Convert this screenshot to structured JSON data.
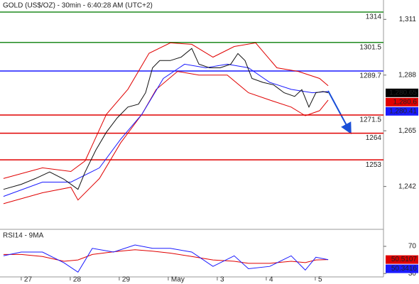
{
  "chart_data": [
    {
      "type": "line",
      "title": "GOLD (US$/OZ) - 30min - 6:40:28 AM (UTC+2)",
      "xlim": [
        -10.4,
        177.4
      ],
      "xticks": [
        {
          "value": 0,
          "label": "27"
        },
        {
          "value": 24,
          "label": "28"
        },
        {
          "value": 48,
          "label": "29"
        },
        {
          "value": 72,
          "label": "May"
        },
        {
          "value": 96,
          "label": "3"
        },
        {
          "value": 120,
          "label": "4"
        },
        {
          "value": 144,
          "label": "5"
        }
      ],
      "ylim": [
        1224.6,
        1319
      ],
      "yticks": [
        {
          "value": 1311,
          "label": "1,311"
        },
        {
          "value": 1288,
          "label": "1,288"
        },
        {
          "value": 1265,
          "label": "1,265"
        },
        {
          "value": 1242,
          "label": "1,242"
        }
      ],
      "series": [
        {
          "color": "#e00000",
          "x": [
            -8.7,
            10.4,
            24.3,
            31.3,
            41.7,
            52.2,
            62.6,
            73,
            83.5,
            93.9,
            104.3,
            114.8,
            125.2,
            135.7,
            146.1,
            150.3
          ],
          "values": [
            1245.3,
            1249.7,
            1248.2,
            1252.6,
            1271.8,
            1282.1,
            1297,
            1301.3,
            1300.7,
            1295.4,
            1299.8,
            1301.3,
            1291,
            1289.5,
            1286.6,
            1283.6
          ]
        },
        {
          "color": "#e00000",
          "x": [
            -8.7,
            10.4,
            24.3,
            27.8,
            38.3,
            48.7,
            59.1,
            66.1,
            76.5,
            87,
            100.9,
            111.3,
            121.7,
            132.2,
            139.1,
            146.1,
            150.3
          ],
          "values": [
            1234.9,
            1239.4,
            1241.7,
            1236.4,
            1245.3,
            1260,
            1271.8,
            1282.1,
            1289.5,
            1288,
            1288,
            1280.7,
            1277.7,
            1274.8,
            1271.2,
            1273.3,
            1277.7
          ]
        },
        {
          "color": "#1a1aff",
          "x": [
            -8.7,
            10.4,
            24.3,
            38.3,
            48.7,
            59.1,
            69.6,
            80,
            90.4,
            100.9,
            111.3,
            121.7,
            132.2,
            142.6,
            150.3
          ],
          "values": [
            1237.9,
            1243.8,
            1243.8,
            1249.7,
            1261.5,
            1271.8,
            1286.6,
            1292.5,
            1291,
            1292.5,
            1291,
            1285,
            1282.1,
            1280.7,
            1281.2
          ]
        },
        {
          "color": "#111111",
          "x": [
            -8.7,
            0,
            7,
            13.9,
            20.9,
            27.8,
            31.3,
            36.5,
            41.7,
            47,
            52.2,
            57.4,
            60.9,
            64.3,
            67.8,
            73,
            78.3,
            83.5,
            87,
            92.2,
            97.4,
            102.6,
            106.1,
            109.6,
            113,
            118.3,
            123.5,
            128.7,
            133.9,
            137.4,
            140.9,
            144.3,
            147.8,
            150.3
          ],
          "values": [
            1240.8,
            1242.9,
            1245.3,
            1248,
            1245,
            1240.8,
            1248,
            1257,
            1264.4,
            1270.3,
            1274.8,
            1276,
            1280.7,
            1291,
            1294,
            1294,
            1295.4,
            1299,
            1292.5,
            1291,
            1291,
            1292.5,
            1296.9,
            1294,
            1286.6,
            1285,
            1284,
            1280.7,
            1279.2,
            1282,
            1274.8,
            1280.7,
            1281.2,
            1280.7
          ]
        }
      ],
      "levels": [
        1314,
        1301.5,
        1289.7,
        1271.5,
        1264,
        1253
      ],
      "level_colors": [
        "#1f8a1f",
        "#1f8a1f",
        "#1a1aff",
        "#e00000",
        "#e00000",
        "#e00000"
      ],
      "price_labels": [
        {
          "value": 1280.65,
          "label": "1,280.65",
          "color": "#000000"
        },
        {
          "value": 1280.6,
          "label": "1,280.6",
          "color": "#e00000"
        },
        {
          "value": 1280.41,
          "label": "1,280.41",
          "color": "#1a1aff"
        }
      ]
    },
    {
      "type": "line",
      "title": "RSI14 - 9MA",
      "ylim": [
        25,
        94
      ],
      "yticks": [
        70,
        30
      ],
      "series": [
        {
          "color": "#e00000",
          "x": [
            -8.7,
            0,
            10.4,
            20.9,
            27.8,
            34.8,
            45.2,
            55.7,
            64.3,
            73,
            83.5,
            93.9,
            104.3,
            111.3,
            121.7,
            132.2,
            139.1,
            144.3,
            150.3
          ],
          "values": [
            58,
            58,
            55,
            48,
            50,
            58,
            62,
            65,
            63,
            60,
            55,
            50,
            48,
            45,
            45,
            48,
            46,
            50,
            50.5107
          ]
        },
        {
          "color": "#1a1aff",
          "x": [
            -8.7,
            0,
            10.4,
            20.9,
            27.8,
            34.8,
            45.2,
            55.7,
            64.3,
            73,
            83.5,
            93.9,
            104.3,
            111.3,
            121.7,
            132.2,
            139.1,
            144.3,
            150.3
          ],
          "values": [
            56,
            61.6,
            61.6,
            45.8,
            32,
            67,
            61.6,
            72,
            67,
            67,
            61.6,
            40.5,
            56,
            37,
            40.5,
            56,
            35,
            54,
            50.3416
          ]
        }
      ],
      "last_values": [
        50.5107,
        50.3416
      ],
      "last_colors": [
        "#e00000",
        "#1a1aff"
      ]
    }
  ]
}
